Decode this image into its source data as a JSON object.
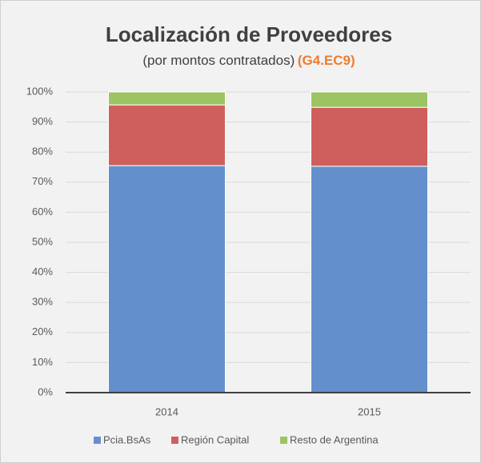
{
  "chart_data": {
    "type": "stacked_bar",
    "title": "Localización de Proveedores",
    "subtitle": "(por montos contratados)",
    "subtitle_code": "(G4.EC9)",
    "categories": [
      "2014",
      "2015"
    ],
    "series": [
      {
        "name": "Pcia.BsAs",
        "color": "#6390cc",
        "values": [
          75.5,
          75.3
        ]
      },
      {
        "name": "Región Capital",
        "color": "#cf5f5d",
        "values": [
          20.2,
          19.6
        ]
      },
      {
        "name": "Resto de Argentina",
        "color": "#9cc462",
        "values": [
          4.3,
          5.1
        ]
      }
    ],
    "ylim": [
      0,
      100
    ],
    "yticks": [
      {
        "value": 0,
        "label": "0%"
      },
      {
        "value": 10,
        "label": "10%"
      },
      {
        "value": 20,
        "label": "20%"
      },
      {
        "value": 30,
        "label": "30%"
      },
      {
        "value": 40,
        "label": "40%"
      },
      {
        "value": 50,
        "label": "50%"
      },
      {
        "value": 60,
        "label": "60%"
      },
      {
        "value": 70,
        "label": "70%"
      },
      {
        "value": 80,
        "label": "80%"
      },
      {
        "value": 90,
        "label": "90%"
      },
      {
        "value": 100,
        "label": "100%"
      }
    ],
    "grid": true,
    "legend": "bottom"
  }
}
